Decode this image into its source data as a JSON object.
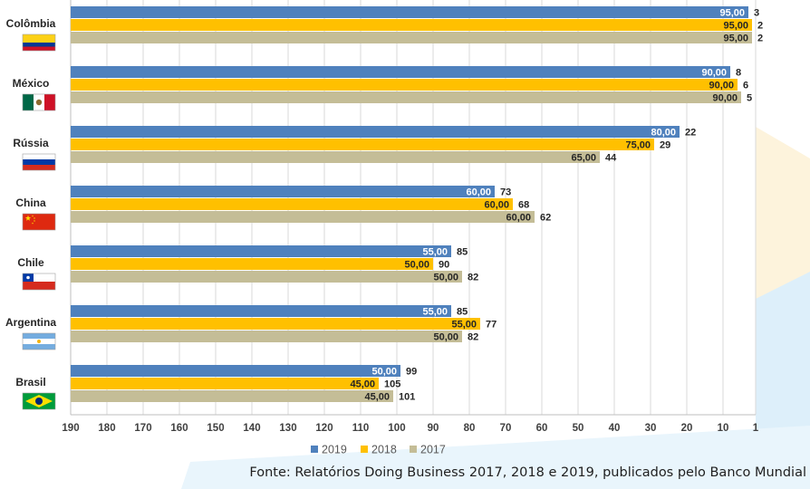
{
  "chart_data": {
    "type": "bar",
    "orientation": "horizontal",
    "x_axis_reversed": true,
    "xlim": [
      190,
      1
    ],
    "x_ticks": [
      "190",
      "180",
      "170",
      "160",
      "150",
      "140",
      "130",
      "120",
      "110",
      "100",
      "90",
      "80",
      "70",
      "60",
      "50",
      "40",
      "30",
      "20",
      "10",
      "1"
    ],
    "grid": true,
    "legend_position": "bottom",
    "categories": [
      "Colômbia",
      "México",
      "Rússia",
      "China",
      "Chile",
      "Argentina",
      "Brasil"
    ],
    "series": [
      {
        "name": "2019",
        "color": "#4F81BD",
        "values": [
          3,
          8,
          22,
          73,
          85,
          85,
          99
        ],
        "labels": [
          "95,00",
          "90,00",
          "80,00",
          "60,00",
          "55,00",
          "55,00",
          "50,00"
        ]
      },
      {
        "name": "2018",
        "color": "#FFC000",
        "values": [
          2,
          6,
          29,
          68,
          90,
          77,
          105
        ],
        "labels": [
          "95,00",
          "90,00",
          "75,00",
          "60,00",
          "50,00",
          "55,00",
          "45,00"
        ]
      },
      {
        "name": "2017",
        "color": "#C4BD97",
        "values": [
          2,
          5,
          44,
          62,
          82,
          82,
          101
        ],
        "labels": [
          "95,00",
          "90,00",
          "65,00",
          "60,00",
          "50,00",
          "50,00",
          "45,00"
        ]
      }
    ]
  },
  "source_note": "Fonte: Relatórios Doing Business 2017, 2018 e 2019, publicados pelo Banco Mundial",
  "flags": [
    "colombia-flag-icon",
    "mexico-flag-icon",
    "russia-flag-icon",
    "china-flag-icon",
    "chile-flag-icon",
    "argentina-flag-icon",
    "brazil-flag-icon"
  ]
}
